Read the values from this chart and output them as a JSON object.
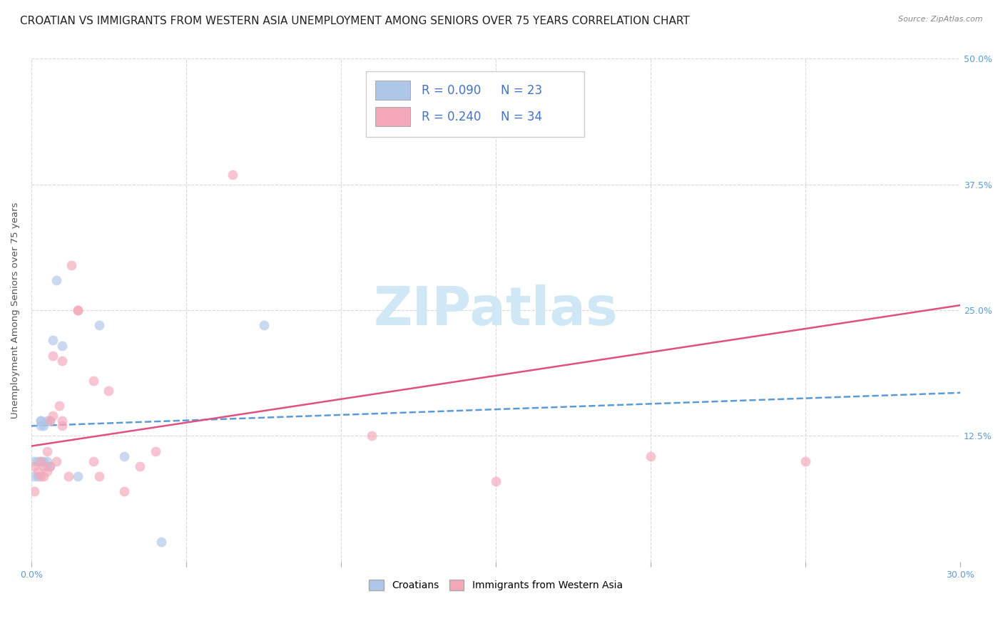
{
  "title": "CROATIAN VS IMMIGRANTS FROM WESTERN ASIA UNEMPLOYMENT AMONG SENIORS OVER 75 YEARS CORRELATION CHART",
  "source": "Source: ZipAtlas.com",
  "ylabel": "Unemployment Among Seniors over 75 years",
  "xlim": [
    0.0,
    0.3
  ],
  "ylim": [
    0.0,
    0.5
  ],
  "xticks": [
    0.0,
    0.05,
    0.1,
    0.15,
    0.2,
    0.25,
    0.3
  ],
  "xtick_labels": [
    "0.0%",
    "",
    "",
    "",
    "",
    "",
    "30.0%"
  ],
  "yticks_right": [
    0.0,
    0.125,
    0.25,
    0.375,
    0.5
  ],
  "ytick_labels_right": [
    "",
    "12.5%",
    "25.0%",
    "37.5%",
    "50.0%"
  ],
  "croatians": {
    "x": [
      0.001,
      0.001,
      0.002,
      0.002,
      0.003,
      0.003,
      0.003,
      0.003,
      0.004,
      0.004,
      0.005,
      0.005,
      0.005,
      0.006,
      0.006,
      0.007,
      0.008,
      0.01,
      0.015,
      0.022,
      0.03,
      0.042,
      0.075
    ],
    "y": [
      0.085,
      0.1,
      0.1,
      0.085,
      0.135,
      0.14,
      0.14,
      0.1,
      0.135,
      0.1,
      0.095,
      0.14,
      0.1,
      0.095,
      0.14,
      0.22,
      0.28,
      0.215,
      0.085,
      0.235,
      0.105,
      0.02,
      0.235
    ],
    "color": "#aec6e8",
    "R": 0.09,
    "N": 23,
    "trend_color": "#5b9bd5",
    "trend_style": "--"
  },
  "western_asia": {
    "x": [
      0.001,
      0.001,
      0.002,
      0.003,
      0.003,
      0.004,
      0.004,
      0.005,
      0.005,
      0.006,
      0.006,
      0.007,
      0.007,
      0.008,
      0.009,
      0.01,
      0.01,
      0.01,
      0.012,
      0.013,
      0.015,
      0.015,
      0.02,
      0.02,
      0.022,
      0.025,
      0.03,
      0.035,
      0.04,
      0.065,
      0.11,
      0.15,
      0.2,
      0.25
    ],
    "y": [
      0.07,
      0.095,
      0.09,
      0.085,
      0.1,
      0.085,
      0.095,
      0.09,
      0.11,
      0.095,
      0.14,
      0.145,
      0.205,
      0.1,
      0.155,
      0.135,
      0.14,
      0.2,
      0.085,
      0.295,
      0.25,
      0.25,
      0.18,
      0.1,
      0.085,
      0.17,
      0.07,
      0.095,
      0.11,
      0.385,
      0.125,
      0.08,
      0.105,
      0.1
    ],
    "color": "#f4a7b9",
    "R": 0.24,
    "N": 34,
    "trend_color": "#e05080",
    "trend_style": "-"
  },
  "trend_y_start_cr": 0.135,
  "trend_y_end_cr": 0.168,
  "trend_y_start_wa": 0.115,
  "trend_y_end_wa": 0.255,
  "watermark": "ZIPatlas",
  "watermark_color": "#d0e8f5",
  "background_color": "#ffffff",
  "grid_color": "#d8d8d8",
  "title_fontsize": 11,
  "axis_label_fontsize": 9.5,
  "tick_fontsize": 9,
  "legend_fontsize": 12,
  "scatter_size": 100,
  "scatter_alpha": 0.65
}
